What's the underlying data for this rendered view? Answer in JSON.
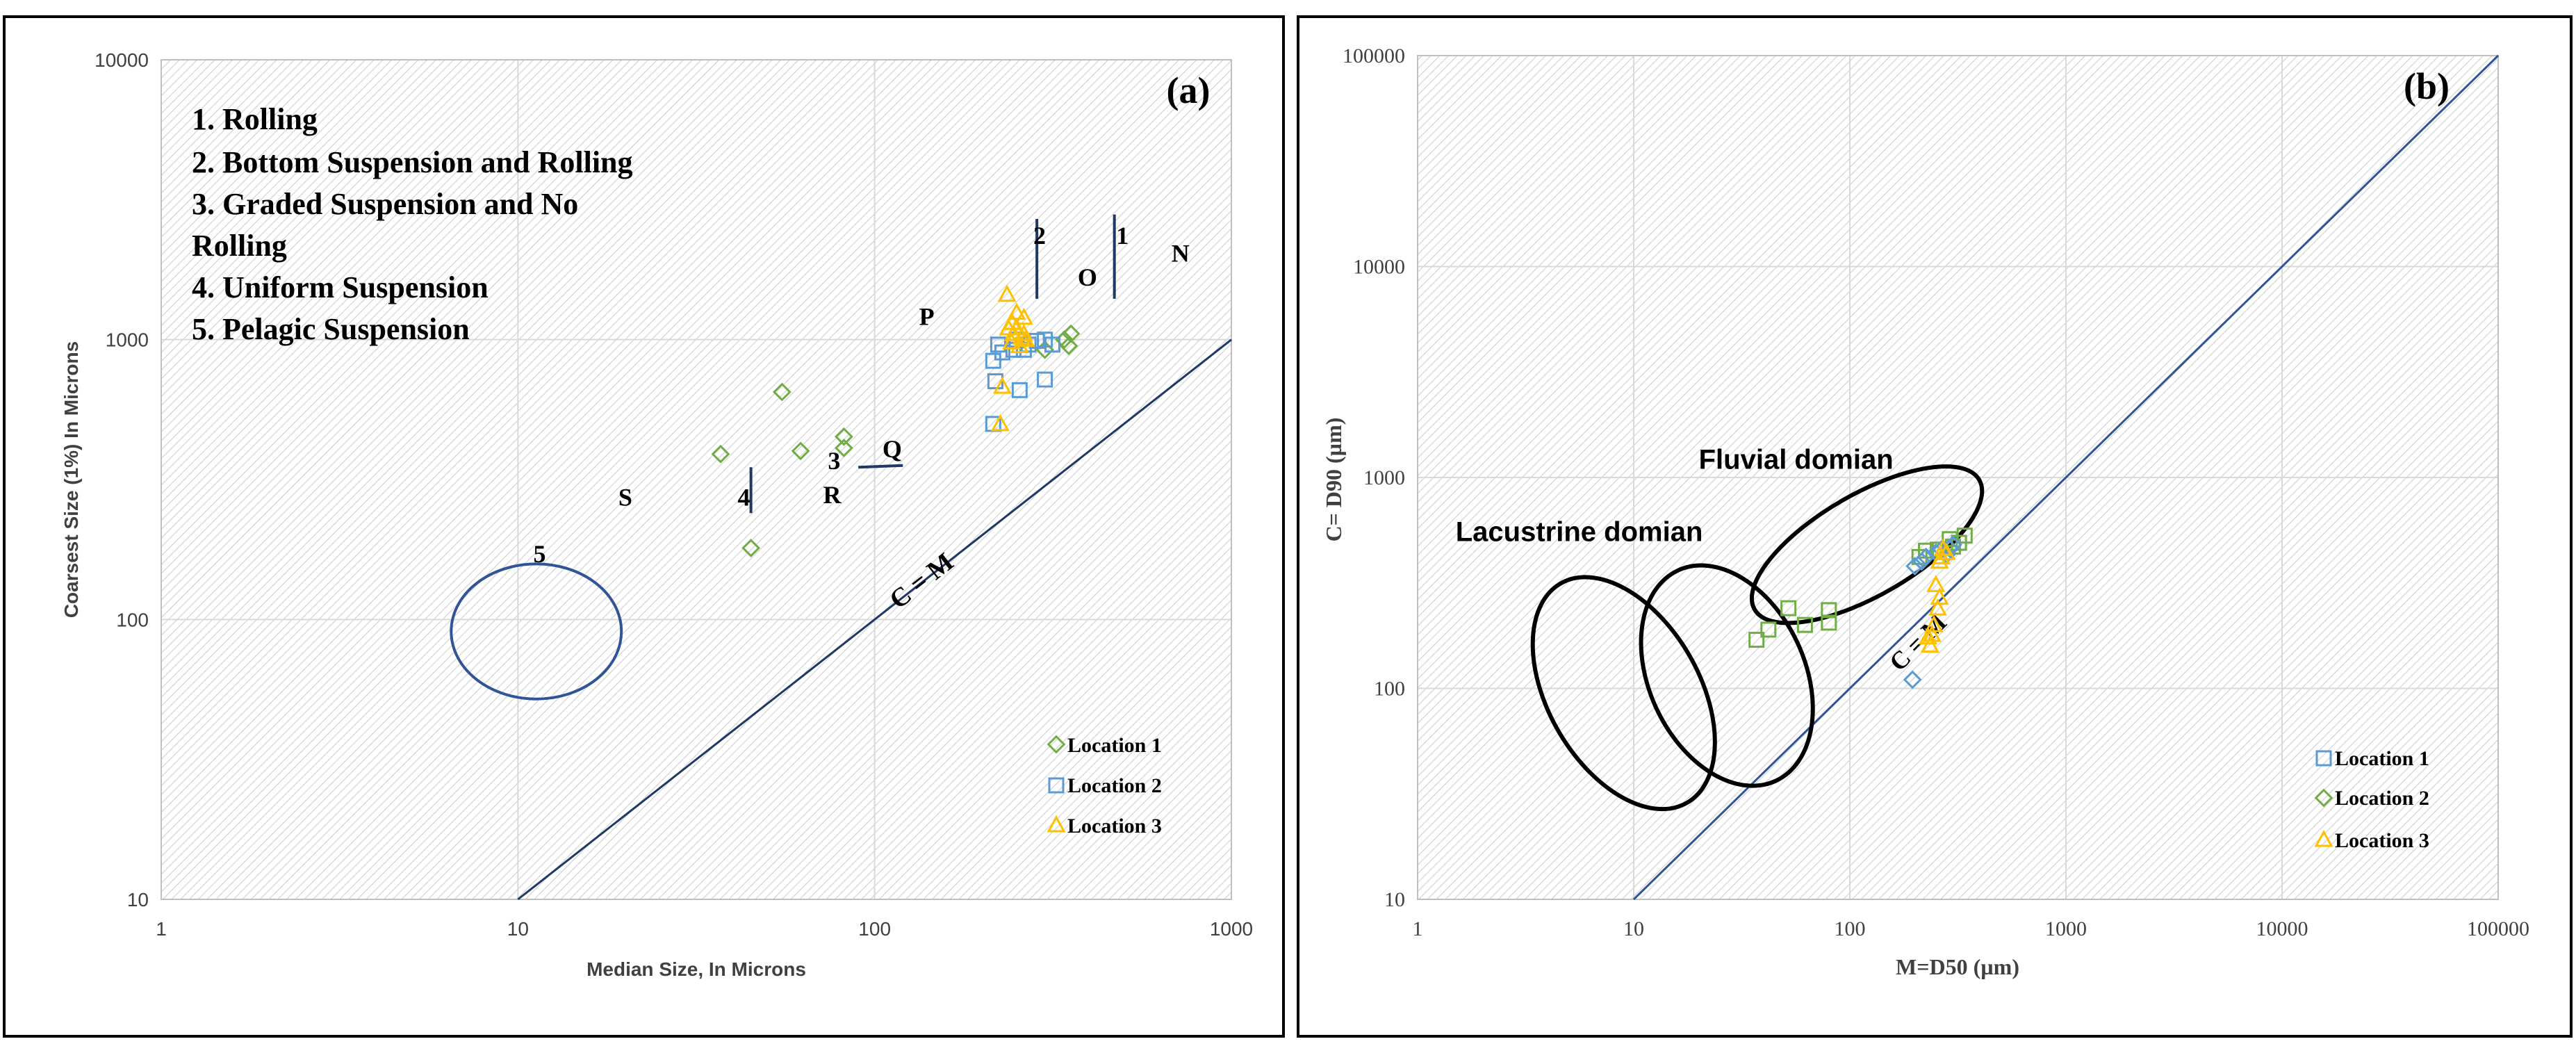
{
  "colors": {
    "location1": "#70AD47",
    "location2": "#5B9BD5",
    "location3": "#FFC000",
    "cm_line": "#1F3864",
    "text": "#000000",
    "grid": "#D9D9D9",
    "frame": "#000000",
    "axis_label": "#404040"
  },
  "chart_data": [
    {
      "id": "a",
      "type": "scatter",
      "scale": "log-log",
      "panel_label": "(a)",
      "xlabel": "Median Size, In Microns",
      "ylabel": "Coarsest Size (1%) In Microns",
      "xlim": [
        1,
        1000
      ],
      "ylim": [
        10,
        10000
      ],
      "x_ticks": [
        1,
        10,
        100,
        1000
      ],
      "x_tick_labels": [
        "1",
        "10",
        "100",
        "1000"
      ],
      "y_ticks": [
        10,
        100,
        1000,
        10000
      ],
      "y_tick_labels": [
        "10",
        "100",
        "1000",
        "10000"
      ],
      "grid": true,
      "legend_position": "bottom-right",
      "modes": [
        "1. Rolling",
        "2. Bottom Suspension and Rolling",
        "3. Graded Suspension and No",
        "Rolling",
        "4. Uniform Suspension",
        "5. Pelagic Suspension"
      ],
      "reference_line": {
        "label": "C = M",
        "from": [
          10,
          10
        ],
        "to": [
          1000,
          1000
        ],
        "label_at": [
          140,
          130
        ]
      },
      "zone_labels": [
        {
          "text": "N",
          "x": 720,
          "y": 1900
        },
        {
          "text": "O",
          "x": 395,
          "y": 1560
        },
        {
          "text": "P",
          "x": 140,
          "y": 1130
        },
        {
          "text": "Q",
          "x": 112,
          "y": 380
        },
        {
          "text": "R",
          "x": 76,
          "y": 260
        },
        {
          "text": "S",
          "x": 20,
          "y": 255
        },
        {
          "text": "1",
          "x": 495,
          "y": 2200
        },
        {
          "text": "2",
          "x": 290,
          "y": 2200
        },
        {
          "text": "3",
          "x": 77,
          "y": 345
        },
        {
          "text": "4",
          "x": 43,
          "y": 255
        },
        {
          "text": "5",
          "x": 11.5,
          "y": 160
        }
      ],
      "boundaries": [
        {
          "from": [
            470,
            1400
          ],
          "to": [
            470,
            2800
          ]
        },
        {
          "from": [
            285,
            1400
          ],
          "to": [
            285,
            2700
          ]
        },
        {
          "from": [
            90,
            350
          ],
          "to": [
            120,
            355
          ]
        },
        {
          "from": [
            45,
            240
          ],
          "to": [
            45,
            350
          ]
        }
      ],
      "ellipse_5": {
        "center": [
          11.5,
          90
        ],
        "x_range": [
          6.5,
          19.5
        ],
        "y_range": [
          52,
          158
        ]
      },
      "series": [
        {
          "name": "Location 1",
          "marker": "diamond",
          "points": [
            [
              37,
              390
            ],
            [
              55,
              650
            ],
            [
              62,
              400
            ],
            [
              82,
              410
            ],
            [
              82,
              450
            ],
            [
              45,
              180
            ],
            [
              350,
              950
            ],
            [
              355,
              1050
            ],
            [
              340,
              1000
            ],
            [
              260,
              1000
            ],
            [
              300,
              920
            ]
          ]
        },
        {
          "name": "Location 2",
          "marker": "square",
          "points": [
            [
              215,
              840
            ],
            [
              222,
              960
            ],
            [
              228,
              900
            ],
            [
              218,
              710
            ],
            [
              215,
              500
            ],
            [
              255,
              660
            ],
            [
              300,
              720
            ],
            [
              285,
              990
            ],
            [
              300,
              1000
            ],
            [
              315,
              960
            ],
            [
              270,
              960
            ],
            [
              262,
              920
            ],
            [
              245,
              920
            ],
            [
              250,
              1000
            ]
          ]
        },
        {
          "name": "Location 3",
          "marker": "triangle",
          "points": [
            [
              235,
              1450
            ],
            [
              243,
              1150
            ],
            [
              250,
              1100
            ],
            [
              237,
              1100
            ],
            [
              245,
              1050
            ],
            [
              258,
              1020
            ],
            [
              265,
              1000
            ],
            [
              242,
              980
            ],
            [
              262,
              1050
            ],
            [
              255,
              950
            ],
            [
              228,
              680
            ],
            [
              225,
              500
            ],
            [
              262,
              1200
            ],
            [
              250,
              1250
            ]
          ]
        }
      ]
    },
    {
      "id": "b",
      "type": "scatter",
      "scale": "log-log",
      "panel_label": "(b)",
      "xlabel": "M=D50 (µm)",
      "ylabel": "C= D90 (µm)",
      "xlim": [
        1,
        100000
      ],
      "ylim": [
        10,
        100000
      ],
      "x_ticks": [
        1,
        10,
        100,
        1000,
        10000,
        100000
      ],
      "x_tick_labels": [
        "1",
        "10",
        "100",
        "1000",
        "10000",
        "100000"
      ],
      "y_ticks": [
        10,
        100,
        1000,
        10000,
        100000
      ],
      "y_tick_labels": [
        "10",
        "100",
        "1000",
        "10000",
        "100000"
      ],
      "grid": true,
      "legend_position": "bottom-right",
      "reference_line": {
        "label": "C = M",
        "from": [
          10,
          10
        ],
        "to": [
          100000,
          100000
        ],
        "label_at": [
          220,
          155
        ]
      },
      "regions": [
        {
          "label": "Fluvial domian",
          "label_at": [
            20,
            1100
          ],
          "center": [
            120,
            480
          ],
          "rx_dec": 0.6,
          "ry_dec": 0.24,
          "angle_deg": -30
        },
        {
          "label": "Lacustrine domian",
          "label_at": [
            1.5,
            500
          ],
          "center": [
            27,
            115
          ],
          "rx_dec": 0.36,
          "ry_dec": 0.55,
          "angle_deg": -25
        },
        {
          "label": "",
          "center": [
            9,
            95
          ],
          "rx_dec": 0.35,
          "ry_dec": 0.6,
          "angle_deg": -30
        }
      ],
      "series": [
        {
          "name": "Location 1",
          "marker": "square",
          "points": [
            [
              37,
              170
            ],
            [
              42,
              190
            ],
            [
              52,
              240
            ],
            [
              62,
              200
            ],
            [
              80,
              205
            ],
            [
              80,
              235
            ],
            [
              210,
              420
            ],
            [
              225,
              450
            ],
            [
              255,
              455
            ],
            [
              300,
              470
            ],
            [
              320,
              490
            ],
            [
              340,
              530
            ],
            [
              290,
              510
            ]
          ]
        },
        {
          "name": "Location 2",
          "marker": "diamond",
          "points": [
            [
              195,
              110
            ],
            [
              200,
              380
            ],
            [
              215,
              400
            ],
            [
              225,
              420
            ],
            [
              250,
              440
            ],
            [
              280,
              430
            ],
            [
              290,
              460
            ],
            [
              300,
              480
            ],
            [
              265,
              455
            ]
          ]
        },
        {
          "name": "Location 3",
          "marker": "triangle",
          "points": [
            [
              235,
              160
            ],
            [
              240,
              180
            ],
            [
              245,
              200
            ],
            [
              255,
              240
            ],
            [
              260,
              270
            ],
            [
              250,
              310
            ],
            [
              265,
              420
            ],
            [
              270,
              460
            ],
            [
              280,
              440
            ],
            [
              260,
              400
            ],
            [
              230,
              175
            ]
          ]
        }
      ]
    }
  ]
}
